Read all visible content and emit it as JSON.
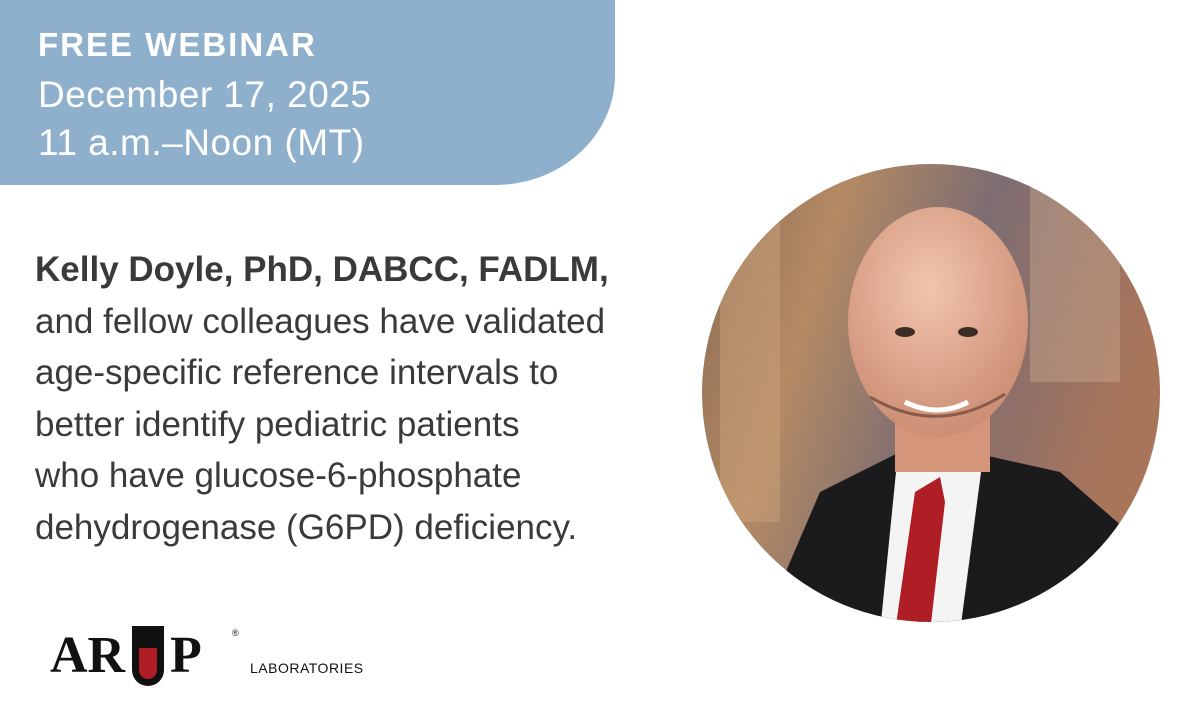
{
  "banner": {
    "label": "FREE WEBINAR",
    "date": "December 17, 2025",
    "time": "11 a.m.–Noon (MT)"
  },
  "body": {
    "lead": "Kelly Doyle, PhD, DABCC, FADLM,",
    "lines": [
      "and fellow colleagues have validated",
      "age-specific reference intervals to",
      "better identify pediatric patients",
      "who have glucose-6-phosphate",
      "dehydrogenase (G6PD) deficiency."
    ]
  },
  "logo": {
    "left": "AR",
    "right": "P",
    "mark": "®",
    "sub": "LABORATORIES"
  }
}
